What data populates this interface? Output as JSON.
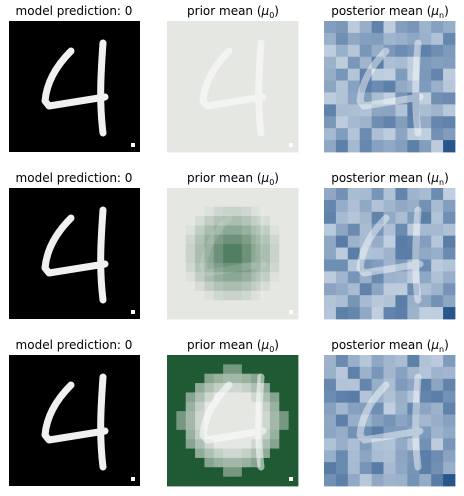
{
  "chart_data": [
    {
      "type": "heatmap",
      "row": 1,
      "panels": [
        {
          "kind": "input",
          "title": "model prediction: 0"
        },
        {
          "kind": "prior",
          "title": "prior mean (",
          "title_sym": "μ",
          "title_sub": "0",
          "title_end": ")",
          "variant": 1
        },
        {
          "kind": "posterior",
          "title": "posterior mean (",
          "title_sym": "μ",
          "title_sub": "n",
          "title_end": ")",
          "variant": 1
        }
      ]
    },
    {
      "type": "heatmap",
      "row": 2,
      "panels": [
        {
          "kind": "input",
          "title": "model prediction: 0"
        },
        {
          "kind": "prior",
          "title": "prior mean (",
          "title_sym": "μ",
          "title_sub": "0",
          "title_end": ")",
          "variant": 2
        },
        {
          "kind": "posterior",
          "title": "posterior mean (",
          "title_sym": "μ",
          "title_sub": "n",
          "title_end": ")",
          "variant": 2
        }
      ]
    },
    {
      "type": "heatmap",
      "row": 3,
      "panels": [
        {
          "kind": "input",
          "title": "model prediction: 0"
        },
        {
          "kind": "prior",
          "title": "prior mean (",
          "title_sym": "μ",
          "title_sub": "0",
          "title_end": ")",
          "variant": 3
        },
        {
          "kind": "posterior",
          "title": "posterior mean (",
          "title_sym": "μ",
          "title_sub": "n",
          "title_end": ")",
          "variant": 3
        }
      ]
    }
  ],
  "colors": {
    "digit_background": "#000000",
    "digit_stroke": "#f0f0f0",
    "prior_light": "#e4e7e2",
    "prior_dark": "#1f5a34",
    "posterior_light": "#dde6ef",
    "posterior_dark": "#1e4e86"
  }
}
